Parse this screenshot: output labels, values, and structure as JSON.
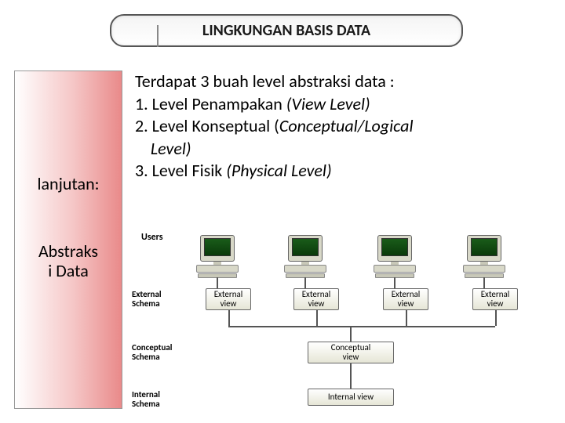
{
  "title": "LINGKUNGAN BASIS DATA",
  "sidebar": {
    "lanjutan": "lanjutan:",
    "abstraksi_line1": "Abstraks",
    "abstraksi_line2": "i Data"
  },
  "body": {
    "intro": "Terdapat 3 buah level abstraksi data :",
    "l1_a": "1. Level Penampakan ",
    "l1_b": "(View Level)",
    "l2_a": "2. Level Konseptual (",
    "l2_b": "Conceptual/Logical",
    "l2_c": "    Level)",
    "l3_a": "3. Level Fisik ",
    "l3_b": "(Physical Level)"
  },
  "diagram": {
    "users": "Users",
    "external_schema": "External\nSchema",
    "conceptual_schema": "Conceptual\nSchema",
    "internal_schema": "Internal\nSchema",
    "external_view": "External\nview",
    "conceptual_view": "Conceptual\nview",
    "internal_view": "Internal view",
    "computer_positions": [
      74,
      186,
      300,
      414
    ],
    "extview_positions": [
      90,
      202,
      316,
      430
    ],
    "colors": {
      "monitor_body": "#d8d8c8",
      "screen_top": "#1a5c1a",
      "screen_bot": "#0a3a0a",
      "box_grad_top": "#ffffff",
      "box_grad_bot": "#e6e6d6",
      "line": "#555555"
    }
  }
}
